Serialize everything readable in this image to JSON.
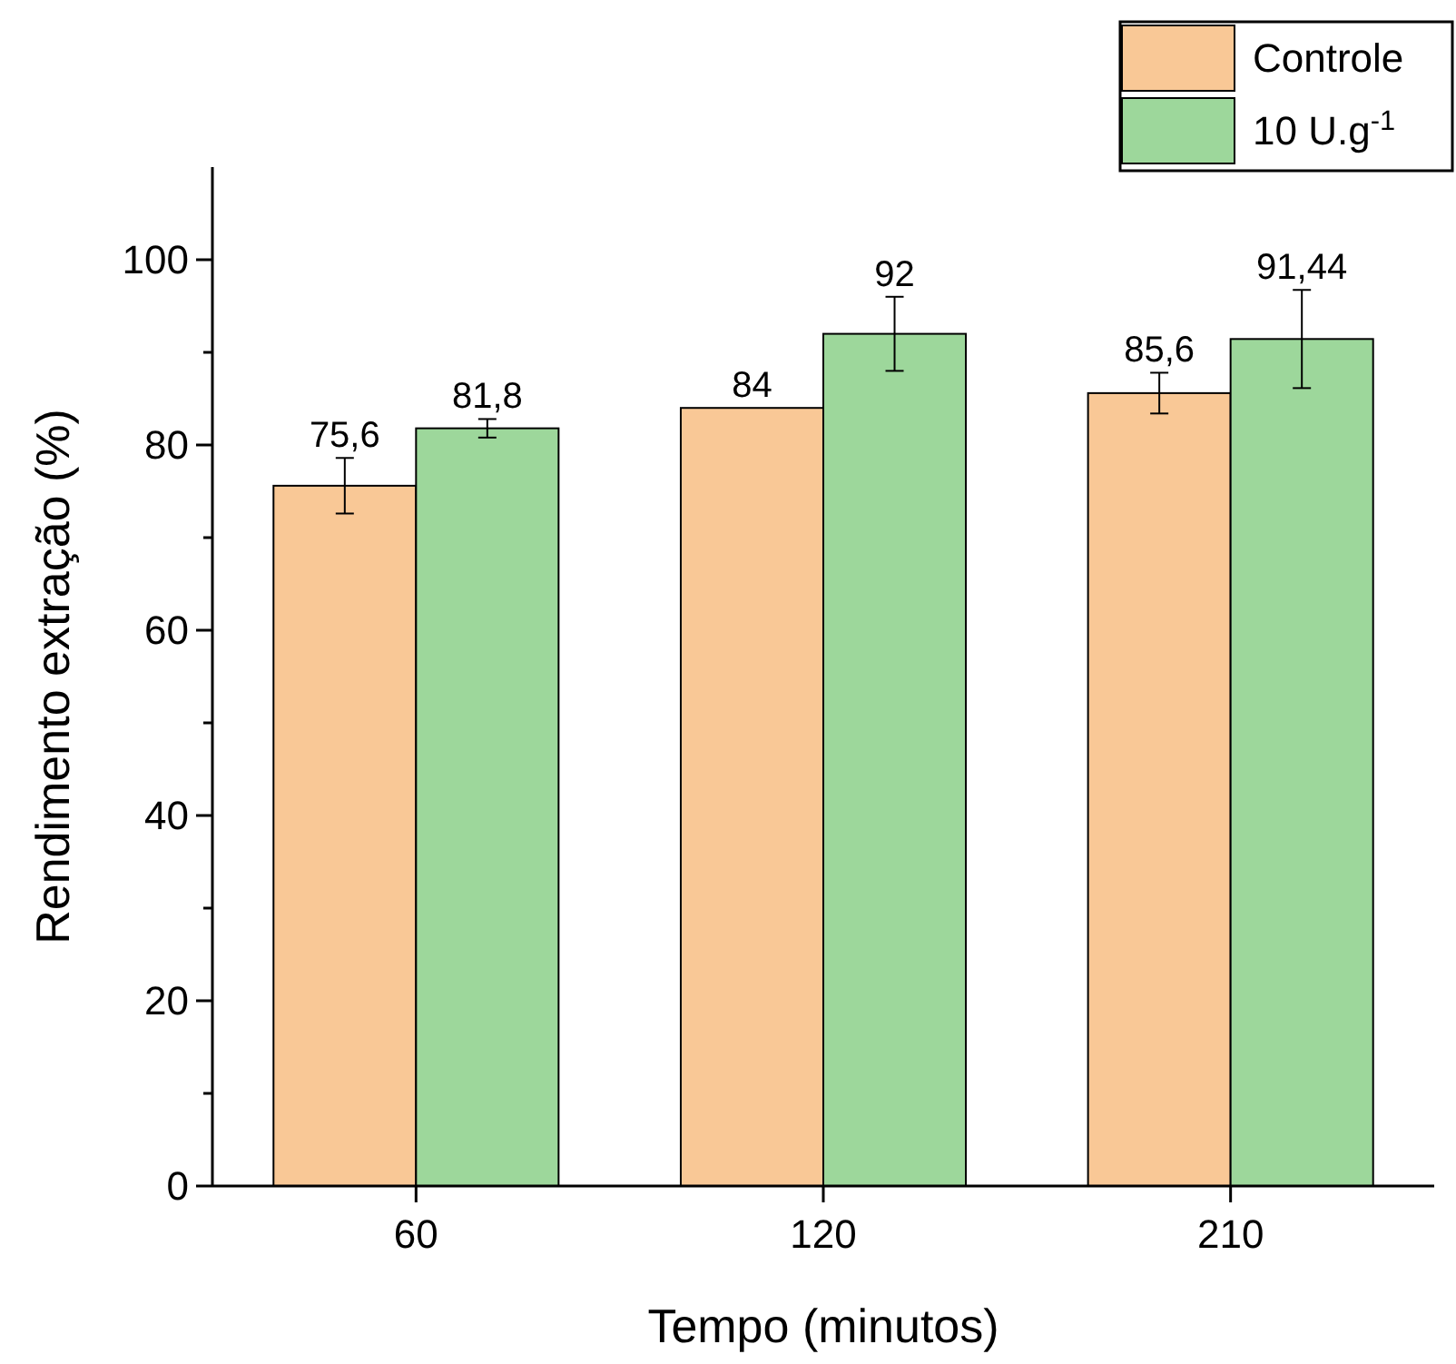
{
  "chart_data": {
    "type": "bar",
    "xlabel": "Tempo (minutos)",
    "ylabel": "Rendimento extração (%)",
    "categories": [
      "60",
      "120",
      "210"
    ],
    "series": [
      {
        "name": "Controle",
        "color": "#f9c896",
        "values": [
          75.6,
          84,
          85.6
        ],
        "value_labels": [
          "75,6",
          "84",
          "85,6"
        ],
        "errors": [
          3,
          null,
          2.2
        ]
      },
      {
        "name": "10 U.g$^{-1}$",
        "color": "#9dd79b",
        "values": [
          81.8,
          92,
          91.44
        ],
        "value_labels": [
          "81,8",
          "92",
          "91,44"
        ],
        "errors": [
          1,
          4,
          5.3
        ]
      }
    ],
    "ylim": [
      0,
      110
    ],
    "yticks": [
      0,
      {
        "value": 10,
        "label": null
      },
      20,
      {
        "value": 30,
        "label": null
      },
      40,
      {
        "value": 50,
        "label": null
      },
      60,
      {
        "value": 70,
        "label": null
      },
      80,
      {
        "value": 90,
        "label": null
      },
      100
    ],
    "legend": "top right",
    "grid": false
  }
}
